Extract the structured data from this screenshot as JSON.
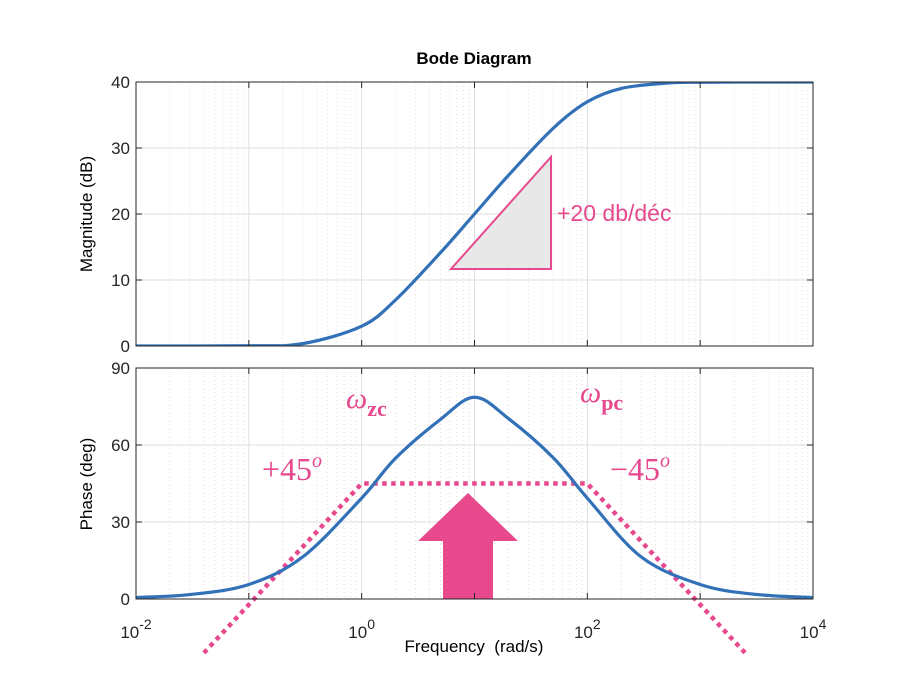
{
  "chart_data": [
    {
      "type": "line",
      "panel": "magnitude",
      "title": "Bode Diagram",
      "ylabel": "Magnitude (dB)",
      "xscale": "log",
      "xlim": [
        0.01,
        10000
      ],
      "ylim": [
        0,
        40
      ],
      "yticks": [
        0,
        10,
        20,
        30,
        40
      ],
      "grid": true,
      "color": "#3271b8",
      "series": [
        {
          "x": [
            0.01,
            0.1,
            0.3,
            1,
            2,
            5,
            10,
            20,
            50,
            100,
            200,
            500,
            1000,
            3000,
            10000
          ],
          "values": [
            0.0,
            0.04,
            0.36,
            3.0,
            6.99,
            14.15,
            20.0,
            25.86,
            33.01,
            37.0,
            39.03,
            39.83,
            39.96,
            40.0,
            40.0
          ]
        }
      ],
      "annotations": [
        {
          "text": "+20 db/déc"
        }
      ]
    },
    {
      "type": "line",
      "panel": "phase",
      "ylabel": "Phase (deg)",
      "xlabel": "Frequency  (rad/s)",
      "xscale": "log",
      "xlim": [
        0.01,
        10000
      ],
      "ylim": [
        0,
        90
      ],
      "yticks": [
        0,
        30,
        60,
        90
      ],
      "xticks": [
        {
          "base": "10",
          "exp": "-2"
        },
        {
          "base": "10",
          "exp": "0"
        },
        {
          "base": "10",
          "exp": "2"
        },
        {
          "base": "10",
          "exp": "4"
        }
      ],
      "grid": true,
      "color": "#3271b8",
      "series": [
        {
          "x": [
            0.01,
            0.03,
            0.1,
            0.3,
            1,
            2,
            5,
            10,
            20,
            50,
            100,
            300,
            1000,
            3000,
            10000
          ],
          "values": [
            0.57,
            1.72,
            5.66,
            16.4,
            39.3,
            54.9,
            70.0,
            78.6,
            70.3,
            55.0,
            39.3,
            16.4,
            5.66,
            1.86,
            0.57
          ]
        }
      ],
      "asymptote": {
        "x": [
          0.04,
          1,
          100,
          2500
        ],
        "values": [
          -21,
          45,
          45,
          -21
        ],
        "color": "#e6498e"
      },
      "annotations": [
        {
          "greek": "ω",
          "sub": "zc"
        },
        {
          "greek": "ω",
          "sub": "pc"
        },
        {
          "base": "+45",
          "sup": "o"
        },
        {
          "base": "−45",
          "sup": "o"
        }
      ]
    }
  ]
}
